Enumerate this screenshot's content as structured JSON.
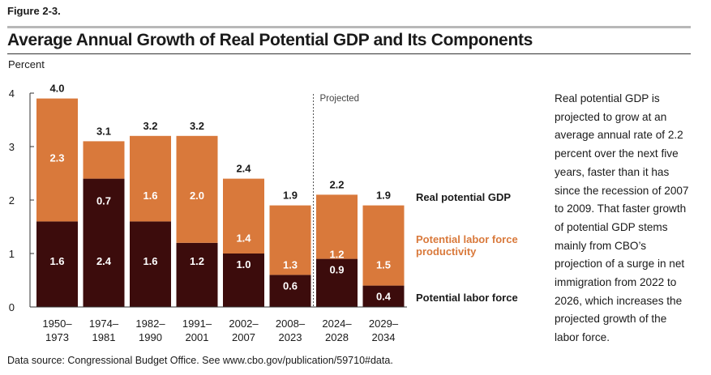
{
  "figure_label": "Figure 2-3.",
  "title": "Average Annual Growth of Real Potential GDP and Its Components",
  "description": "Real potential GDP is projected to grow at an average annual rate of 2.2 percent over the next five years, faster than it has since the recession of 2007 to 2009. That faster growth of potential GDP stems mainly from CBO’s projection of a surge in net immigration from 2022 to 2026, which increases the projected growth of the labor force.",
  "source": {
    "text": "Data source: Congressional Budget Office. See ",
    "link": "www.cbo.gov/publication/59710#data",
    "suffix": "."
  },
  "colors": {
    "labor_force": "#3c0c0c",
    "productivity": "#d9793b",
    "productivity_text": "#d9793b"
  },
  "chart_data": {
    "type": "bar",
    "stacked": true,
    "ylabel": "Percent",
    "ylim": [
      0,
      4
    ],
    "yticks": [
      "0",
      "1",
      "2",
      "3",
      "4"
    ],
    "projected_label": "Projected",
    "categories": [
      [
        "1950–",
        "1973"
      ],
      [
        "1974–",
        "1981"
      ],
      [
        "1982–",
        "1990"
      ],
      [
        "1991–",
        "2001"
      ],
      [
        "2002–",
        "2007"
      ],
      [
        "2008–",
        "2023"
      ],
      [
        "2024–",
        "2028"
      ],
      [
        "2029–",
        "2034"
      ]
    ],
    "series": [
      {
        "name": "Potential labor force",
        "values": [
          1.6,
          2.4,
          1.6,
          1.2,
          1.0,
          0.6,
          0.9,
          0.4
        ],
        "labels": [
          "1.6",
          "2.4",
          "1.6",
          "1.2",
          "1.0",
          "0.6",
          "0.9",
          "0.4"
        ]
      },
      {
        "name": "Potential labor force productivity",
        "values": [
          2.3,
          0.7,
          1.6,
          2.0,
          1.4,
          1.3,
          1.2,
          1.5
        ],
        "labels": [
          "2.3",
          "0.7",
          "1.6",
          "2.0",
          "1.4",
          "1.3",
          "1.2",
          "1.5"
        ]
      }
    ],
    "totals": {
      "name": "Real potential GDP",
      "values": [
        4.0,
        3.1,
        3.2,
        3.2,
        2.4,
        1.9,
        2.2,
        1.9
      ],
      "labels": [
        "4.0",
        "3.1",
        "3.2",
        "3.2",
        "2.4",
        "1.9",
        "2.2",
        "1.9"
      ]
    },
    "legend": {
      "total": "Real potential GDP",
      "productivity": [
        "Potential labor force",
        "productivity"
      ],
      "labor_force": "Potential labor force"
    },
    "grid": false
  }
}
